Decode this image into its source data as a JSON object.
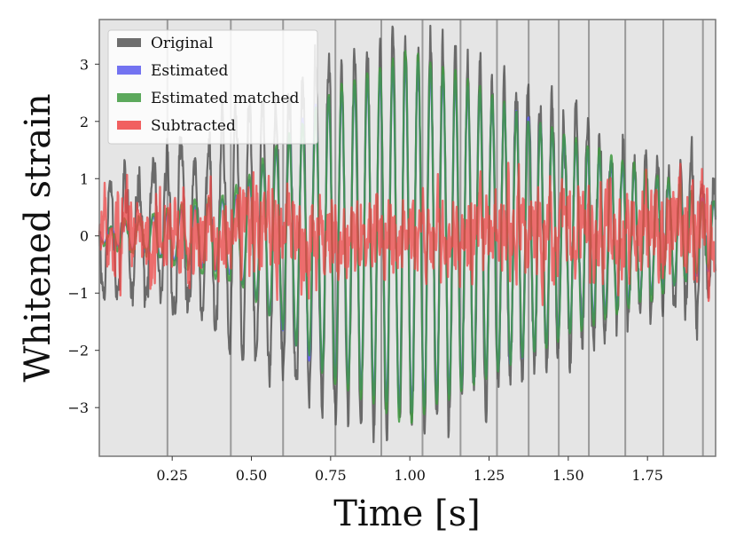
{
  "chart_data": {
    "type": "line",
    "title": "",
    "xlabel": "Time [s]",
    "ylabel": "Whitened strain",
    "xlim": [
      0.02,
      1.965
    ],
    "ylim": [
      -3.85,
      3.78
    ],
    "xticks": [
      0.25,
      0.5,
      0.75,
      1.0,
      1.25,
      1.5,
      1.75
    ],
    "xtick_labels": [
      "0.25",
      "0.50",
      "0.75",
      "1.00",
      "1.25",
      "1.50",
      "1.75"
    ],
    "yticks": [
      -3,
      -2,
      -1,
      0,
      1,
      2,
      3
    ],
    "ytick_labels": [
      "−3",
      "−2",
      "−1",
      "0",
      "1",
      "2",
      "3"
    ],
    "grid": true,
    "legend_position": "top-left",
    "vertical_lines": [
      0.235,
      0.435,
      0.6,
      0.765,
      0.91,
      1.04,
      1.16,
      1.275,
      1.375,
      1.47,
      1.565,
      1.68,
      1.8,
      1.925
    ],
    "series": [
      {
        "name": "Original",
        "color": "#555555",
        "envelope": [
          [
            0.02,
            0.9
          ],
          [
            0.3,
            1.5
          ],
          [
            0.6,
            2.5
          ],
          [
            0.85,
            3.3
          ],
          [
            1.05,
            3.4
          ],
          [
            1.3,
            2.6
          ],
          [
            1.6,
            1.7
          ],
          [
            1.95,
            1.0
          ]
        ]
      },
      {
        "name": "Estimated",
        "color": "#5b5bee",
        "envelope": [
          [
            0.02,
            0.1
          ],
          [
            0.45,
            0.7
          ],
          [
            0.7,
            2.3
          ],
          [
            1.0,
            3.1
          ],
          [
            1.3,
            2.3
          ],
          [
            1.6,
            1.4
          ],
          [
            1.95,
            0.6
          ]
        ]
      },
      {
        "name": "Estimated matched",
        "color": "#3f9a3f",
        "envelope": [
          [
            0.02,
            0.1
          ],
          [
            0.45,
            0.8
          ],
          [
            0.75,
            2.5
          ],
          [
            1.0,
            3.3
          ],
          [
            1.3,
            2.3
          ],
          [
            1.6,
            1.5
          ],
          [
            1.95,
            0.6
          ]
        ]
      },
      {
        "name": "Subtracted",
        "color": "#ee4444",
        "envelope": [
          [
            0.02,
            0.8
          ],
          [
            0.5,
            0.9
          ],
          [
            1.0,
            0.75
          ],
          [
            1.5,
            0.9
          ],
          [
            1.95,
            1.0
          ]
        ]
      }
    ],
    "legend": {
      "entries": [
        "Original",
        "Estimated",
        "Estimated matched",
        "Subtracted"
      ]
    }
  }
}
